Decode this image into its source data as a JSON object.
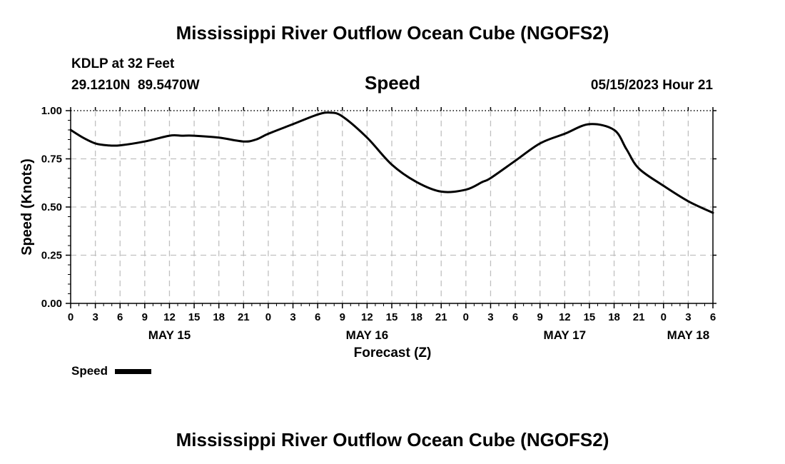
{
  "header": {
    "title": "Mississippi River Outflow Ocean Cube (NGOFS2)",
    "station": "KDLP at 32 Feet",
    "coords": "29.1210N  89.5470W",
    "variable": "Speed",
    "datetime": "05/15/2023 Hour 21"
  },
  "footer": {
    "title": "Mississippi River Outflow Ocean Cube (NGOFS2)"
  },
  "legend": {
    "label": "Speed"
  },
  "colors": {
    "line": "#000000",
    "grid": "#c0c0c0"
  },
  "chart_data": {
    "type": "line",
    "title": "Speed",
    "xlabel": "Forecast (Z)",
    "ylabel": "Speed (Knots)",
    "ylim": [
      0,
      1.0
    ],
    "xlim": [
      0,
      78
    ],
    "x_unit": "hours since 05/15 00Z",
    "yticks": [
      "0.00",
      "0.25",
      "0.50",
      "0.75",
      "1.00"
    ],
    "ytick_values": [
      0,
      0.25,
      0.5,
      0.75,
      1.0
    ],
    "xtick_labels": [
      "0",
      "3",
      "6",
      "9",
      "12",
      "15",
      "18",
      "21",
      "0",
      "3",
      "6",
      "9",
      "12",
      "15",
      "18",
      "21",
      "0",
      "3",
      "6",
      "9",
      "12",
      "15",
      "18",
      "21",
      "0",
      "3",
      "6"
    ],
    "day_labels": [
      {
        "label": "MAY 15",
        "hour": 12
      },
      {
        "label": "MAY 16",
        "hour": 36
      },
      {
        "label": "MAY 17",
        "hour": 60
      },
      {
        "label": "MAY 18",
        "hour": 75
      }
    ],
    "grid": true,
    "legend_position": "bottom-left",
    "series": [
      {
        "name": "Speed",
        "x": [
          0,
          1.5,
          3,
          4.5,
          6,
          9,
          12,
          13.5,
          15,
          18,
          21,
          22.5,
          24,
          27,
          30,
          31.5,
          33,
          36,
          39,
          42,
          45,
          48,
          50,
          51,
          54,
          57,
          60,
          63,
          66,
          67.5,
          69,
          72,
          75,
          78
        ],
        "y": [
          0.9,
          0.86,
          0.83,
          0.82,
          0.82,
          0.84,
          0.87,
          0.87,
          0.87,
          0.86,
          0.84,
          0.85,
          0.88,
          0.93,
          0.98,
          0.99,
          0.97,
          0.86,
          0.72,
          0.63,
          0.58,
          0.59,
          0.63,
          0.65,
          0.74,
          0.83,
          0.88,
          0.93,
          0.9,
          0.8,
          0.7,
          0.61,
          0.53,
          0.47
        ]
      }
    ]
  }
}
